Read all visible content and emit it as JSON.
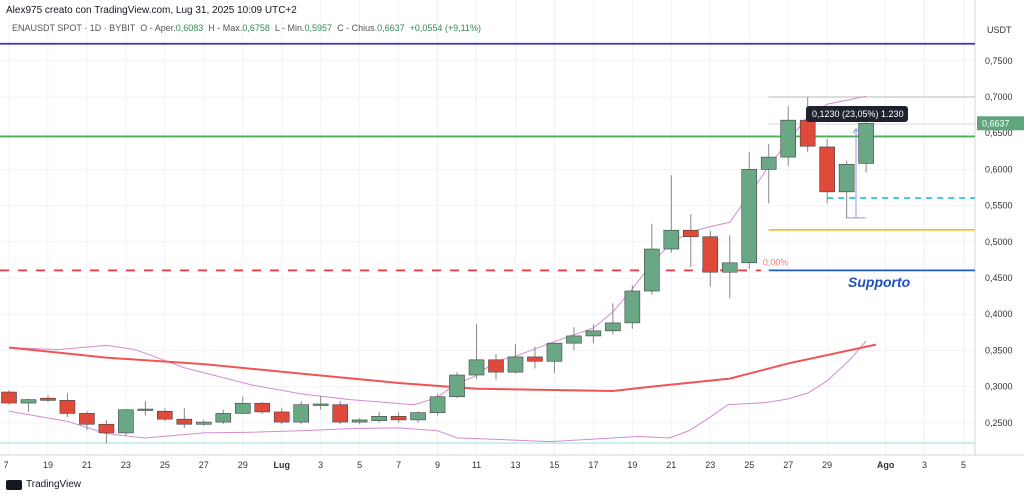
{
  "header": {
    "author_line": "Alex975 creato con TradingView.com, Lug 31, 2025 10:09 UTC+2"
  },
  "legend": {
    "symbol": "ENAUSDT SPOT · 1D · BYBIT",
    "open_label": "O - Aper.",
    "open": "0,6083",
    "high_label": "H - Max.",
    "high": "0,6758",
    "low_label": "L - Min.",
    "low": "0,5957",
    "close_label": "C - Chius.",
    "close": "0,6637",
    "change": "+0,0554 (+9,11%)"
  },
  "footer": {
    "brand": "TradingView"
  },
  "chart_data": {
    "type": "candlestick",
    "currency_label": "USDT",
    "ylim": [
      0.2,
      0.8
    ],
    "y_ticks": [
      "0,7500",
      "0,7000",
      "0,6500",
      "0,6000",
      "0,5500",
      "0,5000",
      "0,4500",
      "0,4000",
      "0,3500",
      "0,3000",
      "0,2500"
    ],
    "y_tick_values": [
      0.75,
      0.7,
      0.65,
      0.6,
      0.55,
      0.5,
      0.45,
      0.4,
      0.35,
      0.3,
      0.25
    ],
    "x_ticks": [
      {
        "label": "7",
        "day": 0
      },
      {
        "label": "19",
        "day": 2
      },
      {
        "label": "21",
        "day": 4
      },
      {
        "label": "23",
        "day": 6
      },
      {
        "label": "25",
        "day": 8
      },
      {
        "label": "27",
        "day": 10
      },
      {
        "label": "29",
        "day": 12
      },
      {
        "label": "Lug",
        "day": 14
      },
      {
        "label": "3",
        "day": 16
      },
      {
        "label": "5",
        "day": 18
      },
      {
        "label": "7",
        "day": 20
      },
      {
        "label": "9",
        "day": 22
      },
      {
        "label": "11",
        "day": 24
      },
      {
        "label": "13",
        "day": 26
      },
      {
        "label": "15",
        "day": 28
      },
      {
        "label": "17",
        "day": 30
      },
      {
        "label": "19",
        "day": 32
      },
      {
        "label": "21",
        "day": 34
      },
      {
        "label": "23",
        "day": 36
      },
      {
        "label": "25",
        "day": 38
      },
      {
        "label": "27",
        "day": 40
      },
      {
        "label": "29",
        "day": 42
      },
      {
        "label": "Ago",
        "day": 45
      },
      {
        "label": "3",
        "day": 47
      },
      {
        "label": "5",
        "day": 49
      }
    ],
    "candles": [
      [
        0.2925,
        0.295,
        0.275,
        0.2773
      ],
      [
        0.2773,
        0.283,
        0.265,
        0.282
      ],
      [
        0.284,
        0.288,
        0.279,
        0.281
      ],
      [
        0.281,
        0.291,
        0.258,
        0.263
      ],
      [
        0.263,
        0.266,
        0.24,
        0.248
      ],
      [
        0.248,
        0.254,
        0.222,
        0.236
      ],
      [
        0.236,
        0.269,
        0.232,
        0.268
      ],
      [
        0.268,
        0.28,
        0.26,
        0.269
      ],
      [
        0.266,
        0.27,
        0.252,
        0.255
      ],
      [
        0.255,
        0.27,
        0.243,
        0.248
      ],
      [
        0.248,
        0.254,
        0.246,
        0.251
      ],
      [
        0.251,
        0.268,
        0.248,
        0.263
      ],
      [
        0.263,
        0.286,
        0.262,
        0.277
      ],
      [
        0.277,
        0.279,
        0.262,
        0.265
      ],
      [
        0.265,
        0.27,
        0.248,
        0.251
      ],
      [
        0.251,
        0.28,
        0.248,
        0.275
      ],
      [
        0.275,
        0.287,
        0.268,
        0.276
      ],
      [
        0.275,
        0.28,
        0.248,
        0.251
      ],
      [
        0.251,
        0.256,
        0.248,
        0.254
      ],
      [
        0.253,
        0.265,
        0.25,
        0.259
      ],
      [
        0.259,
        0.264,
        0.25,
        0.254
      ],
      [
        0.254,
        0.266,
        0.25,
        0.264
      ],
      [
        0.264,
        0.29,
        0.26,
        0.286
      ],
      [
        0.286,
        0.32,
        0.284,
        0.316
      ],
      [
        0.316,
        0.386,
        0.31,
        0.337
      ],
      [
        0.337,
        0.345,
        0.31,
        0.32
      ],
      [
        0.32,
        0.359,
        0.318,
        0.341
      ],
      [
        0.341,
        0.355,
        0.325,
        0.335
      ],
      [
        0.335,
        0.36,
        0.319,
        0.36
      ],
      [
        0.36,
        0.382,
        0.35,
        0.37
      ],
      [
        0.37,
        0.386,
        0.36,
        0.377
      ],
      [
        0.377,
        0.415,
        0.372,
        0.388
      ],
      [
        0.388,
        0.44,
        0.38,
        0.432
      ],
      [
        0.432,
        0.525,
        0.427,
        0.49
      ],
      [
        0.49,
        0.592,
        0.485,
        0.516
      ],
      [
        0.516,
        0.538,
        0.465,
        0.507
      ],
      [
        0.507,
        0.515,
        0.438,
        0.458
      ],
      [
        0.458,
        0.509,
        0.422,
        0.471
      ],
      [
        0.471,
        0.624,
        0.462,
        0.6
      ],
      [
        0.6,
        0.635,
        0.553,
        0.617
      ],
      [
        0.617,
        0.687,
        0.605,
        0.668
      ],
      [
        0.668,
        0.7,
        0.624,
        0.632
      ],
      [
        0.631,
        0.642,
        0.553,
        0.569
      ],
      [
        0.569,
        0.612,
        0.533,
        0.607
      ],
      [
        0.6083,
        0.6758,
        0.5957,
        0.6637
      ]
    ],
    "candle_format": [
      "open",
      "high",
      "low",
      "close"
    ],
    "ma_series": [
      [
        0,
        0.354
      ],
      [
        5,
        0.34
      ],
      [
        10,
        0.331
      ],
      [
        15,
        0.318
      ],
      [
        20,
        0.305
      ],
      [
        24,
        0.297
      ],
      [
        31,
        0.294
      ],
      [
        33,
        0.3
      ],
      [
        37,
        0.311
      ],
      [
        40,
        0.332
      ],
      [
        44.5,
        0.358
      ]
    ],
    "bb_upper": [
      [
        0,
        0.354
      ],
      [
        2.5,
        0.351
      ],
      [
        5,
        0.357
      ],
      [
        6.5,
        0.351
      ],
      [
        9,
        0.326
      ],
      [
        12.5,
        0.302
      ],
      [
        15,
        0.29
      ],
      [
        17.5,
        0.282
      ],
      [
        20.8,
        0.275
      ],
      [
        22,
        0.285
      ],
      [
        22.9,
        0.303
      ],
      [
        23.9,
        0.314
      ],
      [
        25,
        0.335
      ],
      [
        26,
        0.342
      ],
      [
        28,
        0.362
      ],
      [
        30,
        0.381
      ],
      [
        31,
        0.403
      ],
      [
        32,
        0.435
      ],
      [
        33,
        0.47
      ],
      [
        34,
        0.499
      ],
      [
        35,
        0.514
      ],
      [
        36,
        0.521
      ],
      [
        37,
        0.527
      ],
      [
        38,
        0.565
      ],
      [
        39,
        0.604
      ],
      [
        40,
        0.639
      ],
      [
        41,
        0.673
      ],
      [
        42,
        0.69
      ],
      [
        44,
        0.701
      ]
    ],
    "bb_lower": [
      [
        0,
        0.266
      ],
      [
        3,
        0.252
      ],
      [
        5,
        0.235
      ],
      [
        7,
        0.229
      ],
      [
        10,
        0.236
      ],
      [
        12.5,
        0.237
      ],
      [
        15,
        0.239
      ],
      [
        17.5,
        0.242
      ],
      [
        20,
        0.243
      ],
      [
        22,
        0.239
      ],
      [
        23,
        0.229
      ],
      [
        24.2,
        0.228
      ],
      [
        27.8,
        0.224
      ],
      [
        30.3,
        0.228
      ],
      [
        32.3,
        0.231
      ],
      [
        33.9,
        0.229
      ],
      [
        34.9,
        0.239
      ],
      [
        35.9,
        0.256
      ],
      [
        36.9,
        0.275
      ],
      [
        38.9,
        0.278
      ],
      [
        40,
        0.283
      ],
      [
        41,
        0.291
      ],
      [
        42,
        0.308
      ],
      [
        43.2,
        0.338
      ],
      [
        44,
        0.363
      ]
    ],
    "levels": [
      {
        "name": "purple-level",
        "value": 0.7735,
        "color": "#3f2fb5",
        "from_day": -1
      },
      {
        "name": "green-level",
        "value": 0.6455,
        "color": "#4caf50",
        "from_day": -1
      },
      {
        "name": "red-dashed-level",
        "value": 0.4605,
        "color": "#f23645",
        "from_day": -1,
        "to_day": 38.6,
        "dashed": true
      },
      {
        "name": "support-level",
        "value": 0.4605,
        "color": "#1e5bd1",
        "from_day": 39
      },
      {
        "name": "yellow-level",
        "value": 0.5165,
        "color": "#f5c030",
        "from_day": 39
      },
      {
        "name": "cyan-dashed-level",
        "value": 0.5605,
        "color": "#31c4d6",
        "from_day": 42,
        "dashed": true
      },
      {
        "name": "gray-top-level",
        "value": 0.7,
        "color": "#c8c8c8",
        "from_day": 39
      },
      {
        "name": "gray-mid-level",
        "value": 0.6625,
        "color": "#e0e0e0",
        "from_day": 39
      },
      {
        "name": "teal-bottom-level",
        "value": 0.222,
        "color": "#a3e1df",
        "from_day": -1
      }
    ],
    "fib_label": "0,00%",
    "support_label": "Supporto",
    "measure": {
      "text": "0,1230 (23,05%) 1.230",
      "from": 0.533,
      "to": 0.656
    },
    "last_price_label": "0,6637",
    "last_price": 0.6637,
    "colors": {
      "up": "#6aa784",
      "down": "#e04a3a",
      "ma": "#f05454",
      "bb": "#d58bd1"
    }
  }
}
